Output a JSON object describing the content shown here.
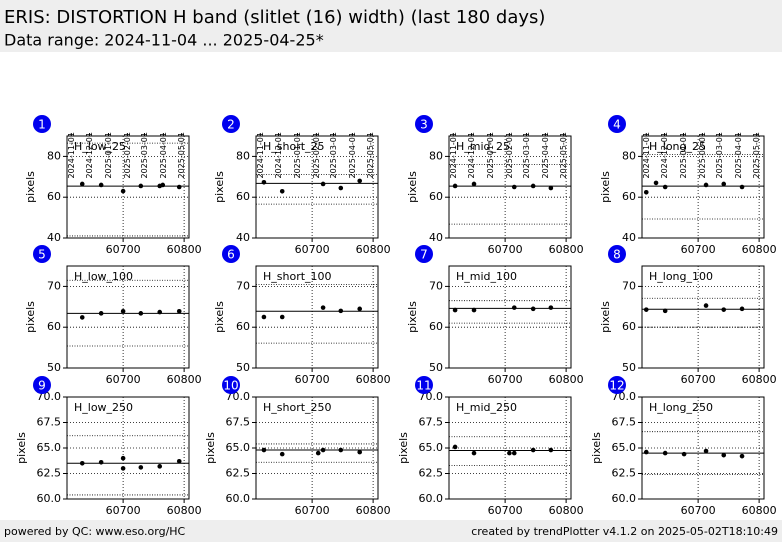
{
  "header": {
    "title": "ERIS: DISTORTION H band (slitlet (16) width) (last 180 days)",
    "subtitle": "Data range: 2024-11-04 ... 2025-04-25*"
  },
  "footer": {
    "left": "powered by QC: www.eso.org/HC",
    "right": "created by trendPlotter v4.1.2 on 2025-05-02T18:10:49"
  },
  "chart_data": [
    {
      "type": "scatter",
      "badge": "1",
      "title": "H_low_25",
      "ylabel": "pixels",
      "color": "#000000",
      "grid": true,
      "x": [
        60633,
        60664,
        60700,
        60729,
        60760,
        60765,
        60792
      ],
      "values": [
        66.5,
        66,
        63,
        65.5,
        65.5,
        66,
        65
      ],
      "median": 65.4,
      "limits": [
        41,
        86.5
      ],
      "xlim": [
        60608,
        60808
      ],
      "xticks": [
        60700,
        60800
      ],
      "x2ticks": [
        {
          "value": 60615,
          "label": "2024-11-01"
        },
        {
          "value": 60645,
          "label": "2024-12-01"
        },
        {
          "value": 60676,
          "label": "2025-01-01"
        },
        {
          "value": 60707,
          "label": "2025-02-01"
        },
        {
          "value": 60735,
          "label": "2025-03-01"
        },
        {
          "value": 60766,
          "label": "2025-04-01"
        },
        {
          "value": 60796,
          "label": "2025-05-01"
        }
      ],
      "ylim": [
        40,
        90
      ],
      "yticks": [
        40,
        60,
        80
      ]
    },
    {
      "type": "scatter",
      "badge": "2",
      "title": "H_short_25",
      "ylabel": "pixels",
      "color": "#000000",
      "grid": true,
      "x": [
        60621,
        60651,
        60718,
        60747,
        60778
      ],
      "values": [
        67.3,
        62.9,
        66.5,
        64.5,
        68
      ],
      "median": 66.8,
      "limits": [
        56.6,
        71.2
      ],
      "xlim": [
        60608,
        60808
      ],
      "xticks": [
        60700,
        60800
      ],
      "x2ticks": [
        {
          "value": 60615,
          "label": "2024-11-01"
        },
        {
          "value": 60645,
          "label": "2024-12-01"
        },
        {
          "value": 60676,
          "label": "2025-01-01"
        },
        {
          "value": 60707,
          "label": "2025-02-01"
        },
        {
          "value": 60735,
          "label": "2025-03-01"
        },
        {
          "value": 60766,
          "label": "2025-04-01"
        },
        {
          "value": 60796,
          "label": "2025-05-01"
        }
      ],
      "ylim": [
        40,
        90
      ],
      "yticks": [
        40,
        60,
        80
      ]
    },
    {
      "type": "scatter",
      "badge": "3",
      "title": "H_mid_25",
      "ylabel": "pixels",
      "color": "#000000",
      "grid": true,
      "x": [
        60618,
        60649,
        60715,
        60746,
        60775
      ],
      "values": [
        65.5,
        66.5,
        65,
        65.5,
        64.5
      ],
      "median": 65.4,
      "limits": [
        46.8,
        76.1
      ],
      "xlim": [
        60608,
        60808
      ],
      "xticks": [
        60700,
        60800
      ],
      "x2ticks": [
        {
          "value": 60615,
          "label": "2024-11-01"
        },
        {
          "value": 60645,
          "label": "2024-12-01"
        },
        {
          "value": 60676,
          "label": "2025-01-01"
        },
        {
          "value": 60707,
          "label": "2025-02-01"
        },
        {
          "value": 60735,
          "label": "2025-03-01"
        },
        {
          "value": 60766,
          "label": "2025-04-01"
        },
        {
          "value": 60796,
          "label": "2025-05-01"
        }
      ],
      "ylim": [
        40,
        90
      ],
      "yticks": [
        40,
        60,
        80
      ]
    },
    {
      "type": "scatter",
      "badge": "4",
      "title": "H_long_25",
      "ylabel": "pixels",
      "color": "#000000",
      "grid": true,
      "x": [
        60615,
        60631,
        60646,
        60713,
        60742,
        60772
      ],
      "values": [
        62.4,
        67,
        65,
        66,
        66.5,
        65
      ],
      "median": 65.4,
      "limits": [
        49.3,
        81
      ],
      "xlim": [
        60608,
        60808
      ],
      "xticks": [
        60700,
        60800
      ],
      "x2ticks": [
        {
          "value": 60615,
          "label": "2024-11-01"
        },
        {
          "value": 60645,
          "label": "2024-12-01"
        },
        {
          "value": 60676,
          "label": "2025-01-01"
        },
        {
          "value": 60707,
          "label": "2025-02-01"
        },
        {
          "value": 60735,
          "label": "2025-03-01"
        },
        {
          "value": 60766,
          "label": "2025-04-01"
        },
        {
          "value": 60796,
          "label": "2025-05-01"
        }
      ],
      "ylim": [
        40,
        90
      ],
      "yticks": [
        40,
        60,
        80
      ]
    },
    {
      "type": "scatter",
      "badge": "5",
      "title": "H_low_100",
      "ylabel": "pixels",
      "color": "#000000",
      "grid": true,
      "x": [
        60633,
        60664,
        60700,
        60729,
        60760,
        60792
      ],
      "values": [
        62.4,
        63.4,
        63.9,
        63.4,
        63.7,
        63.9
      ],
      "median": 63.4,
      "limits": [
        55.4,
        71.5
      ],
      "xlim": [
        60608,
        60808
      ],
      "xticks": [
        60700,
        60800
      ],
      "ylim": [
        50,
        75
      ],
      "yticks": [
        50,
        60,
        70
      ]
    },
    {
      "type": "scatter",
      "badge": "6",
      "title": "H_short_100",
      "ylabel": "pixels",
      "color": "#000000",
      "grid": true,
      "x": [
        60621,
        60651,
        60718,
        60747,
        60778
      ],
      "values": [
        62.5,
        62.5,
        64.8,
        64,
        64.5
      ],
      "median": 63.9,
      "limits": [
        56.1,
        70.5
      ],
      "xlim": [
        60608,
        60808
      ],
      "xticks": [
        60700,
        60800
      ],
      "ylim": [
        50,
        75
      ],
      "yticks": [
        50,
        60,
        70
      ]
    },
    {
      "type": "scatter",
      "badge": "7",
      "title": "H_mid_100",
      "ylabel": "pixels",
      "color": "#000000",
      "grid": true,
      "x": [
        60618,
        60649,
        60715,
        60746,
        60775
      ],
      "values": [
        64.2,
        64.2,
        64.8,
        64.5,
        64.8
      ],
      "median": 64.6,
      "limits": [
        61,
        66.5
      ],
      "xlim": [
        60608,
        60808
      ],
      "xticks": [
        60700,
        60800
      ],
      "ylim": [
        50,
        75
      ],
      "yticks": [
        50,
        60,
        70
      ]
    },
    {
      "type": "scatter",
      "badge": "8",
      "title": "H_long_100",
      "ylabel": "pixels",
      "color": "#000000",
      "grid": true,
      "x": [
        60615,
        60646,
        60713,
        60742,
        60772
      ],
      "values": [
        64.3,
        64,
        65.3,
        64.3,
        64.5
      ],
      "median": 64.4,
      "limits": [
        60,
        67.1
      ],
      "xlim": [
        60608,
        60808
      ],
      "xticks": [
        60700,
        60800
      ],
      "ylim": [
        50,
        75
      ],
      "yticks": [
        50,
        60,
        70
      ]
    },
    {
      "type": "scatter",
      "badge": "9",
      "title": "H_low_250",
      "ylabel": "pixels",
      "color": "#000000",
      "grid": true,
      "x": [
        60633,
        60664,
        60700,
        60700,
        60729,
        60760,
        60792
      ],
      "values": [
        63.5,
        63.6,
        64,
        63,
        63.1,
        63.2,
        63.7
      ],
      "median": 63.5,
      "limits": [
        60.4,
        66.2
      ],
      "xlim": [
        60608,
        60808
      ],
      "xticks": [
        60700,
        60800
      ],
      "ylim": [
        60,
        70
      ],
      "yticks": [
        {
          "value": 60,
          "label": "60.0"
        },
        {
          "value": 62.5,
          "label": "62.5"
        },
        {
          "value": 65,
          "label": "65.0"
        },
        {
          "value": 67.5,
          "label": "67.5"
        },
        {
          "value": 70,
          "label": "70.0"
        }
      ]
    },
    {
      "type": "scatter",
      "badge": "10",
      "title": "H_short_250",
      "ylabel": "pixels",
      "color": "#000000",
      "grid": true,
      "x": [
        60621,
        60651,
        60710,
        60718,
        60747,
        60778
      ],
      "values": [
        64.8,
        64.4,
        64.5,
        64.8,
        64.8,
        64.6
      ],
      "median": 64.8,
      "limits": [
        63.6,
        65.4
      ],
      "xlim": [
        60608,
        60808
      ],
      "xticks": [
        60700,
        60800
      ],
      "ylim": [
        60,
        70
      ],
      "yticks": [
        {
          "value": 60,
          "label": "60.0"
        },
        {
          "value": 62.5,
          "label": "62.5"
        },
        {
          "value": 65,
          "label": "65.0"
        },
        {
          "value": 67.5,
          "label": "67.5"
        },
        {
          "value": 70,
          "label": "70.0"
        }
      ]
    },
    {
      "type": "scatter",
      "badge": "11",
      "title": "H_mid_250",
      "ylabel": "pixels",
      "color": "#000000",
      "grid": true,
      "x": [
        60618,
        60649,
        60707,
        60715,
        60746,
        60775
      ],
      "values": [
        65.1,
        64.5,
        64.5,
        64.5,
        64.8,
        64.8
      ],
      "median": 64.75,
      "limits": [
        63.3,
        66.1
      ],
      "xlim": [
        60608,
        60808
      ],
      "xticks": [
        60700,
        60800
      ],
      "ylim": [
        60,
        70
      ],
      "yticks": [
        {
          "value": 60,
          "label": "60.0"
        },
        {
          "value": 62.5,
          "label": "62.5"
        },
        {
          "value": 65,
          "label": "65.0"
        },
        {
          "value": 67.5,
          "label": "67.5"
        },
        {
          "value": 70,
          "label": "70.0"
        }
      ]
    },
    {
      "type": "scatter",
      "badge": "12",
      "title": "H_long_250",
      "ylabel": "pixels",
      "color": "#000000",
      "grid": true,
      "x": [
        60615,
        60646,
        60677,
        60713,
        60742,
        60772
      ],
      "values": [
        64.6,
        64.5,
        64.4,
        64.7,
        64.3,
        64.2
      ],
      "median": 64.5,
      "limits": [
        62.4,
        66.6
      ],
      "xlim": [
        60608,
        60808
      ],
      "xticks": [
        60700,
        60800
      ],
      "ylim": [
        60,
        70
      ],
      "yticks": [
        {
          "value": 60,
          "label": "60.0"
        },
        {
          "value": 62.5,
          "label": "62.5"
        },
        {
          "value": 65,
          "label": "65.0"
        },
        {
          "value": 67.5,
          "label": "67.5"
        },
        {
          "value": 70,
          "label": "70.0"
        }
      ]
    }
  ]
}
